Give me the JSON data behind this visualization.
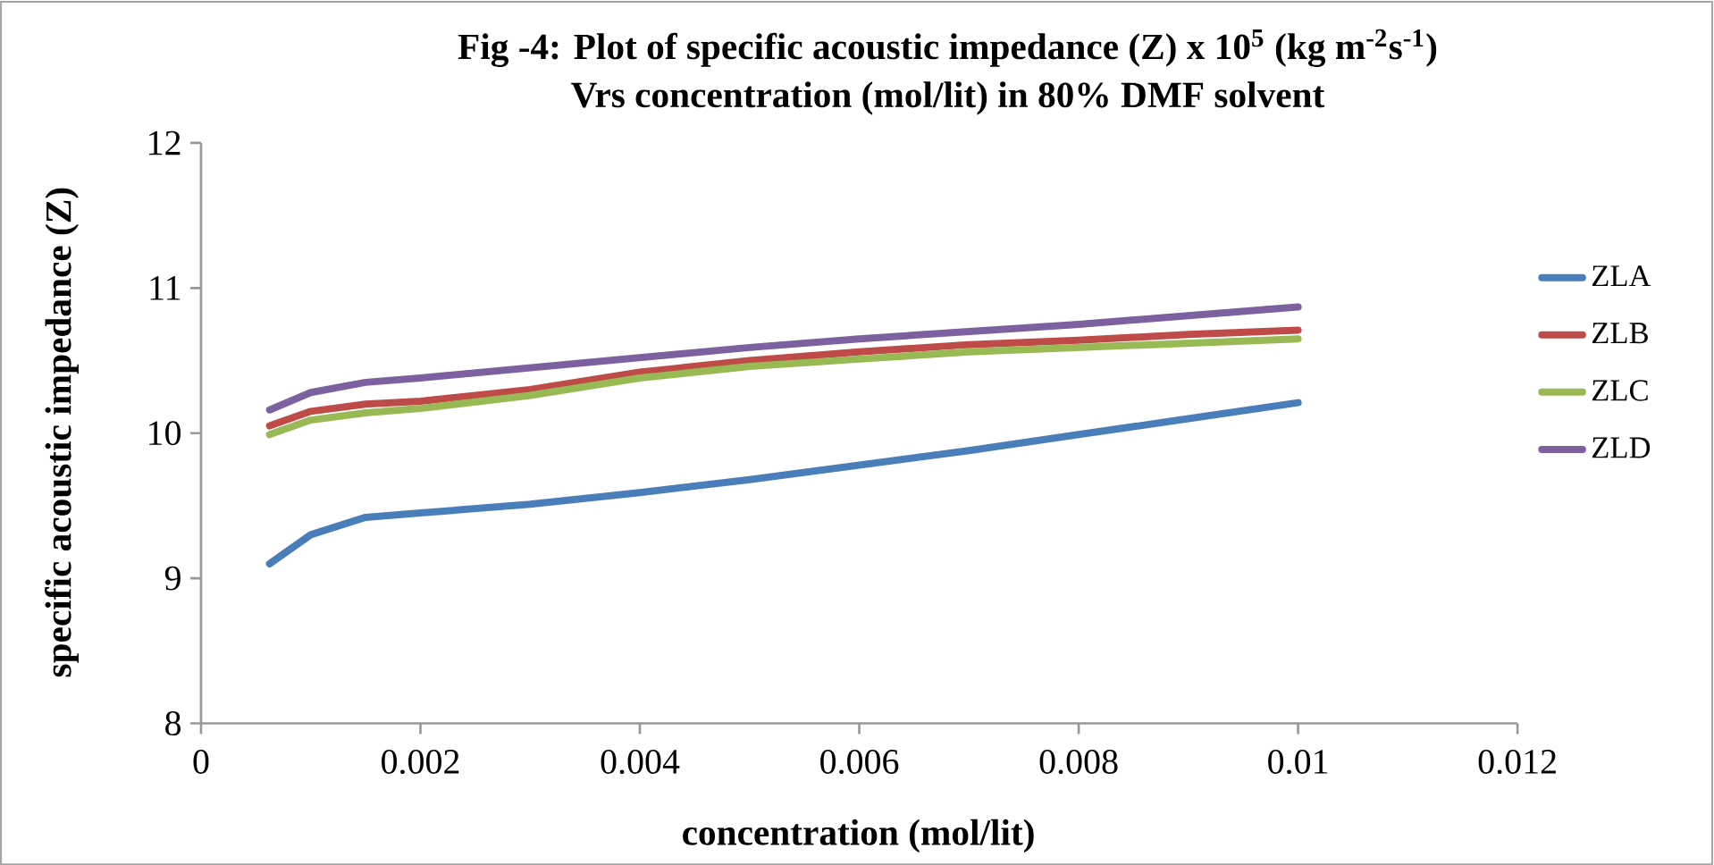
{
  "chart_data": {
    "type": "line",
    "title": "Fig -4: Plot of specific acoustic impedance (Z) x 10$^{5}$   (kg m$^{-2}$s$^{-1}$)",
    "subtitle": "Vrs concentration (mol/lit) in 80% DMF solvent",
    "xlabel": "concentration (mol/lit)",
    "ylabel": "specific acoustic impedance (Z)",
    "x": [
      0.000625,
      0.001,
      0.0015,
      0.002,
      0.003,
      0.004,
      0.005,
      0.006,
      0.007,
      0.008,
      0.009,
      0.01
    ],
    "series": [
      {
        "name": "ZLA",
        "color": "#4a7ebb",
        "values": [
          9.1,
          9.3,
          9.42,
          9.45,
          9.51,
          9.59,
          9.68,
          9.78,
          9.88,
          9.99,
          10.1,
          10.21
        ]
      },
      {
        "name": "ZLB",
        "color": "#be4b48",
        "values": [
          10.05,
          10.15,
          10.2,
          10.22,
          10.3,
          10.42,
          10.5,
          10.56,
          10.61,
          10.64,
          10.68,
          10.71
        ]
      },
      {
        "name": "ZLC",
        "color": "#98b954",
        "values": [
          9.99,
          10.09,
          10.14,
          10.17,
          10.26,
          10.38,
          10.46,
          10.51,
          10.56,
          10.59,
          10.62,
          10.65
        ]
      },
      {
        "name": "ZLD",
        "color": "#7d60a0",
        "values": [
          10.16,
          10.28,
          10.35,
          10.38,
          10.45,
          10.52,
          10.59,
          10.65,
          10.7,
          10.75,
          10.81,
          10.87
        ]
      }
    ],
    "xlim": [
      0,
      0.012
    ],
    "ylim": [
      8,
      12
    ],
    "xticks": [
      0,
      0.002,
      0.004,
      0.006,
      0.008,
      0.01,
      0.012
    ],
    "yticks": [
      8,
      9,
      10,
      11,
      12
    ],
    "legend": "right",
    "marker": "none",
    "line_style": "solid"
  }
}
